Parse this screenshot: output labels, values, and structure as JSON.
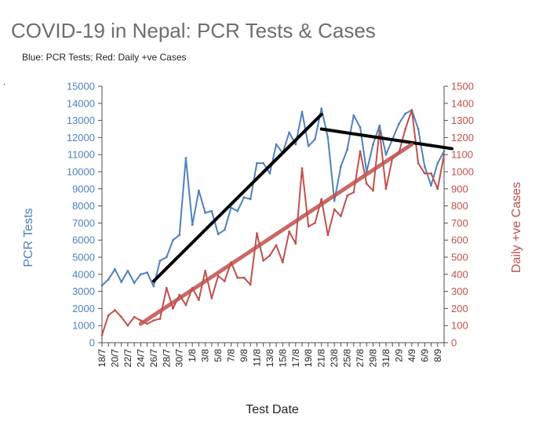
{
  "title": "COVID-19 in Nepal: PCR Tests & Cases",
  "subtitle": "Blue: PCR Tests; Red: Daily +ve Cases",
  "marker_text": ".",
  "colors": {
    "tests": "#4f81bd",
    "cases": "#c0504d",
    "trend_tests": "#000000",
    "trend_cases": "#c0504d"
  },
  "chart_data": {
    "type": "line",
    "title": "COVID-19 in Nepal: PCR Tests & Cases",
    "subtitle": "Blue: PCR Tests; Red: Daily +ve Cases",
    "xlabel": "Test Date",
    "ylabel_left": "PCR Tests",
    "ylabel_right": "Daily +ve Cases",
    "ylim_left": [
      0,
      15000
    ],
    "ylim_right": [
      0,
      1500
    ],
    "yticks_left": [
      "0",
      "1000",
      "2000",
      "3000",
      "4000",
      "5000",
      "6000",
      "7000",
      "8000",
      "9000",
      "10000",
      "11000",
      "12000",
      "13000",
      "14000",
      "15000"
    ],
    "yticks_right": [
      "0",
      "100",
      "200",
      "300",
      "400",
      "500",
      "600",
      "700",
      "800",
      "900",
      "1000",
      "1100",
      "1200",
      "1300",
      "1400",
      "1500"
    ],
    "x": [
      "18/7",
      "19/7",
      "20/7",
      "21/7",
      "22/7",
      "23/7",
      "24/7",
      "25/7",
      "26/7",
      "27/7",
      "28/7",
      "29/7",
      "30/7",
      "31/7",
      "1/8",
      "2/8",
      "3/8",
      "4/8",
      "5/8",
      "6/8",
      "7/8",
      "8/8",
      "9/8",
      "10/8",
      "11/8",
      "12/8",
      "13/8",
      "14/8",
      "15/8",
      "16/8",
      "17/8",
      "18/8",
      "19/8",
      "20/8",
      "21/8",
      "22/8",
      "23/8",
      "24/8",
      "25/8",
      "26/8",
      "27/8",
      "28/8",
      "29/8",
      "30/8",
      "31/8",
      "1/9",
      "2/9",
      "3/9",
      "4/9",
      "5/9",
      "6/9",
      "7/9",
      "8/9",
      "9/9"
    ],
    "x_tick_labels": [
      "18/7",
      "20/7",
      "22/7",
      "24/7",
      "26/7",
      "28/7",
      "30/7",
      "1/8",
      "3/8",
      "5/8",
      "7/8",
      "9/8",
      "11/8",
      "13/8",
      "15/8",
      "17/8",
      "19/8",
      "21/8",
      "23/8",
      "25/8",
      "27/8",
      "29/8",
      "31/8",
      "2/9",
      "4/9",
      "6/9",
      "8/9"
    ],
    "grid": false,
    "series": [
      {
        "axis": "left",
        "values": [
          3350,
          3700,
          4300,
          3550,
          4200,
          3500,
          4000,
          4100,
          3300,
          4800,
          5000,
          6000,
          6300,
          10800,
          6900,
          8900,
          7600,
          7700,
          6350,
          6600,
          7900,
          7700,
          8500,
          8400,
          10500,
          10500,
          9900,
          11600,
          11100,
          12300,
          11600,
          13500,
          11500,
          11900,
          13700,
          12000,
          8300,
          10300,
          11300,
          13300,
          12600,
          10000,
          11600,
          12700,
          11000,
          11900,
          12800,
          13400,
          13600,
          12500,
          10300,
          9200,
          10500,
          11200
        ]
      },
      {
        "axis": "right",
        "values": [
          45,
          160,
          190,
          150,
          100,
          150,
          130,
          110,
          130,
          140,
          320,
          200,
          280,
          220,
          320,
          250,
          420,
          260,
          390,
          360,
          470,
          380,
          380,
          340,
          640,
          480,
          510,
          570,
          470,
          650,
          580,
          1020,
          680,
          700,
          840,
          630,
          780,
          740,
          860,
          880,
          1120,
          930,
          890,
          1240,
          900,
          1080,
          1110,
          1250,
          1360,
          1050,
          990,
          990,
          900,
          1100
        ]
      }
    ],
    "trendlines": [
      {
        "axis": "left",
        "x_from": "26/7",
        "y_from": 3600,
        "x_to": "21/8",
        "y_to": 13350
      },
      {
        "axis": "left",
        "x_from": "21/8",
        "y_from": 12500,
        "x_to": "9/9",
        "y_to": 11350
      },
      {
        "axis": "right",
        "x_from": "24/7",
        "y_from": 110,
        "x_to": "4/9",
        "y_to": 1160
      }
    ]
  }
}
